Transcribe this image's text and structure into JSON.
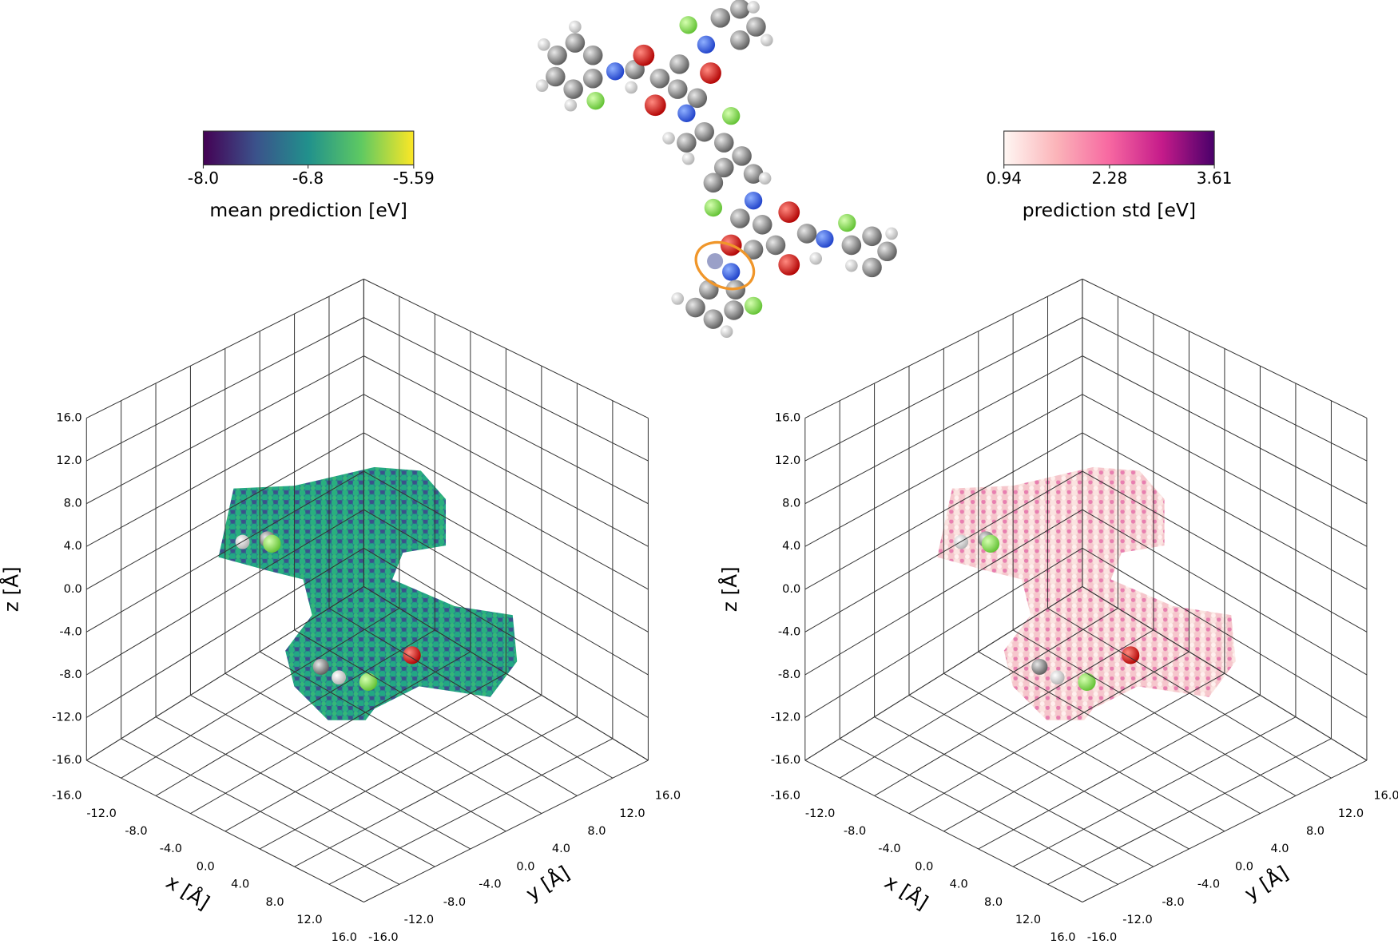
{
  "chart_data": [
    {
      "type": "scatter3d",
      "xlabel": "x [Å]",
      "ylabel": "y [Å]",
      "zlabel": "z [Å]",
      "xlim": [
        -16,
        16
      ],
      "ylim": [
        -16,
        16
      ],
      "zlim": [
        -16,
        16
      ],
      "xticks": [
        {
          "value": -16,
          "label": "-16.0"
        },
        {
          "value": -12,
          "label": "-12.0"
        },
        {
          "value": -8,
          "label": "-8.0"
        },
        {
          "value": -4,
          "label": "-4.0"
        },
        {
          "value": 0,
          "label": "0.0"
        },
        {
          "value": 4,
          "label": "4.0"
        },
        {
          "value": 8,
          "label": "8.0"
        },
        {
          "value": 12,
          "label": "12.0"
        },
        {
          "value": 16,
          "label": "16.0"
        }
      ],
      "yticks": [
        {
          "value": -16,
          "label": "-16.0"
        },
        {
          "value": -12,
          "label": "-12.0"
        },
        {
          "value": -8,
          "label": "-8.0"
        },
        {
          "value": -4,
          "label": "-4.0"
        },
        {
          "value": 0,
          "label": "0.0"
        },
        {
          "value": 4,
          "label": "4.0"
        },
        {
          "value": 8,
          "label": "8.0"
        },
        {
          "value": 12,
          "label": "12.0"
        },
        {
          "value": 16,
          "label": "16.0"
        }
      ],
      "zticks": [
        {
          "value": -16,
          "label": "-16.0"
        },
        {
          "value": -12,
          "label": "-12.0"
        },
        {
          "value": -8,
          "label": "-8.0"
        },
        {
          "value": -4,
          "label": "-4.0"
        },
        {
          "value": 0,
          "label": "0.0"
        },
        {
          "value": 4,
          "label": "4.0"
        },
        {
          "value": 8,
          "label": "8.0"
        },
        {
          "value": 12,
          "label": "12.0"
        },
        {
          "value": 16,
          "label": "16.0"
        }
      ],
      "grid": true,
      "colorbar": {
        "label": "mean prediction [eV]",
        "clim": [
          -8.0,
          -5.59
        ],
        "ticks": [
          {
            "value": -8.0,
            "label": "-8.0"
          },
          -6.8,
          -5.59
        ],
        "colors": [
          "#440154",
          "#3b528b",
          "#21918c",
          "#5ec962",
          "#fde725"
        ]
      }
    },
    {
      "type": "scatter3d",
      "xlabel": "x [Å]",
      "ylabel": "y [Å]",
      "zlabel": "z [Å]",
      "xlim": [
        -16,
        16
      ],
      "ylim": [
        -16,
        16
      ],
      "zlim": [
        -16,
        16
      ],
      "xticks": [
        {
          "value": -16,
          "label": "-16.0"
        },
        {
          "value": -12,
          "label": "-12.0"
        },
        {
          "value": -8,
          "label": "-8.0"
        },
        {
          "value": -4,
          "label": "-4.0"
        },
        {
          "value": 0,
          "label": "0.0"
        },
        {
          "value": 4,
          "label": "4.0"
        },
        {
          "value": 8,
          "label": "8.0"
        },
        {
          "value": 12,
          "label": "12.0"
        },
        {
          "value": 16,
          "label": "16.0"
        }
      ],
      "yticks": [
        {
          "value": -16,
          "label": "-16.0"
        },
        {
          "value": -12,
          "label": "-12.0"
        },
        {
          "value": -8,
          "label": "-8.0"
        },
        {
          "value": -4,
          "label": "-4.0"
        },
        {
          "value": 0,
          "label": "0.0"
        },
        {
          "value": 4,
          "label": "4.0"
        },
        {
          "value": 8,
          "label": "8.0"
        },
        {
          "value": 12,
          "label": "12.0"
        },
        {
          "value": 16,
          "label": "16.0"
        }
      ],
      "zticks": [
        {
          "value": -16,
          "label": "-16.0"
        },
        {
          "value": -12,
          "label": "-12.0"
        },
        {
          "value": -8,
          "label": "-8.0"
        },
        {
          "value": -4,
          "label": "-4.0"
        },
        {
          "value": 0,
          "label": "0.0"
        },
        {
          "value": 4,
          "label": "4.0"
        },
        {
          "value": 8,
          "label": "8.0"
        },
        {
          "value": 12,
          "label": "12.0"
        },
        {
          "value": 16,
          "label": "16.0"
        }
      ],
      "grid": true,
      "colorbar": {
        "label": "prediction std [eV]",
        "clim": [
          0.94,
          3.61
        ],
        "ticks": [
          0.94,
          2.28,
          3.61
        ],
        "colors": [
          "#fff7f3",
          "#fbb4b9",
          "#f768a1",
          "#c51b8a",
          "#49006a"
        ]
      }
    }
  ]
}
